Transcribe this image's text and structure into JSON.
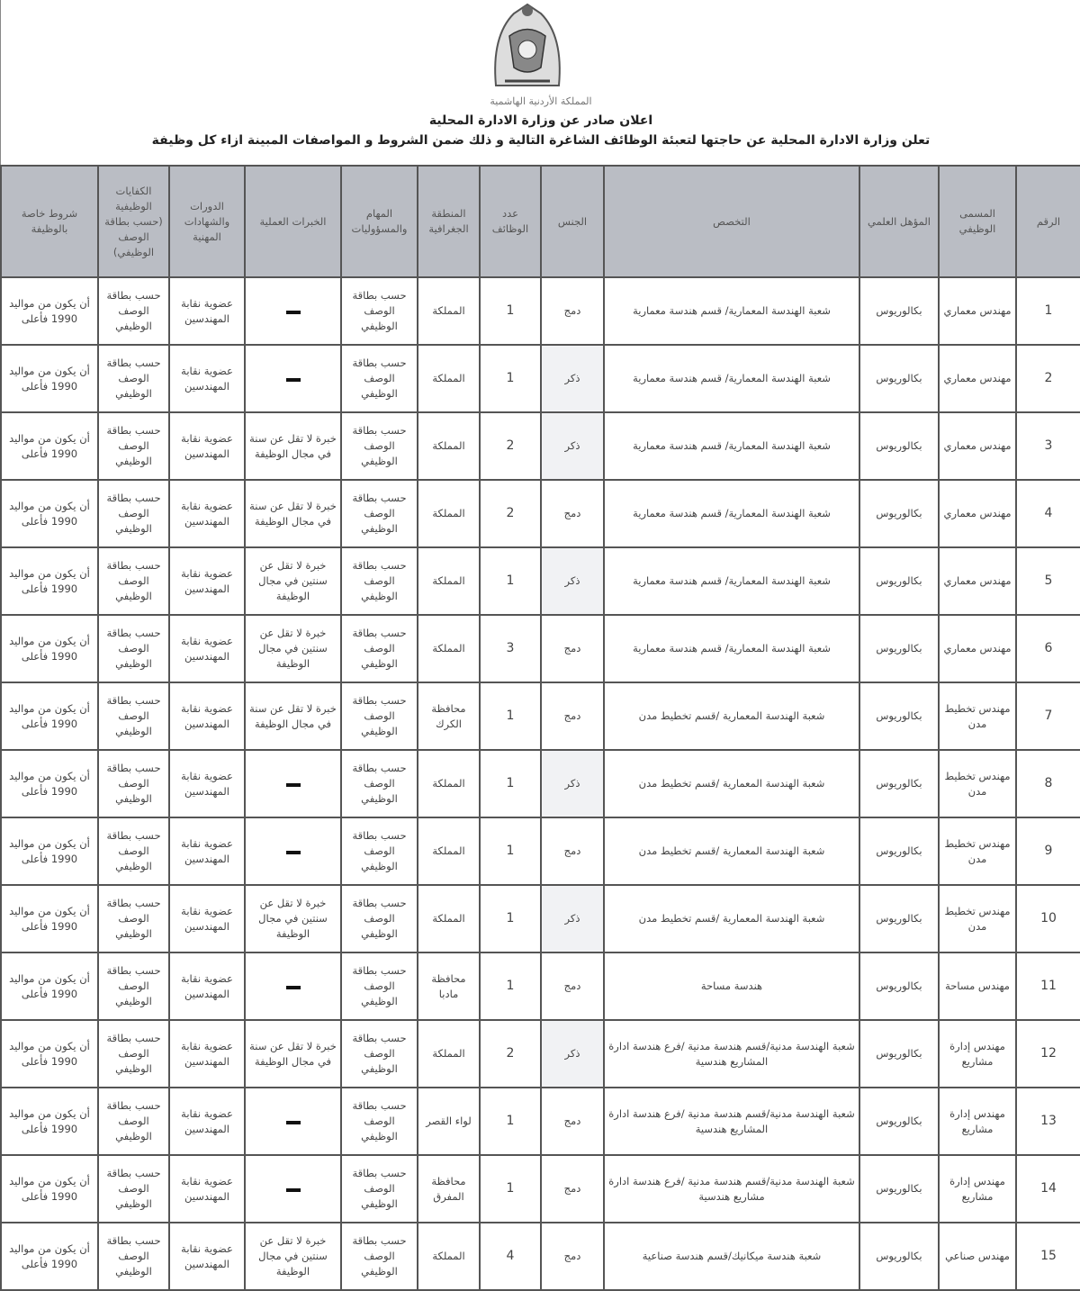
{
  "header": {
    "logo_text": "المملكة الأردنية الهاشمية",
    "title": "اعلان صادر عن وزارة الادارة المحلية",
    "subtitle": "تعلن وزارة الادارة المحلية  عن حاجتها لتعبئة الوظائف الشاغرة التالية و ذلك ضمن الشروط و المواصفات المبينة ازاء كل وظيفة"
  },
  "columns": [
    "الرقم",
    "المسمى الوظيفي",
    "المؤهل العلمي",
    "التخصص",
    "الجنس",
    "عدد الوظائف",
    "المنطقة الجغرافية",
    "المهام والمسؤوليات",
    "الخبرات العملية",
    "الدورات والشهادات المهنية",
    "الكفايات الوظيفية (حسب بطاقة الوصف الوظيفي)",
    "شروط خاصة بالوظيفة"
  ],
  "rows": [
    {
      "no": "1",
      "title": "مهندس معماري",
      "degree": "بكالوريوس",
      "major": "شعبة الهندسة المعمارية/ قسم هندسة معمارية",
      "gender": "دمج",
      "count": "1",
      "region": "المملكة",
      "duties": "حسب بطاقة الوصف الوظيفي",
      "experience": "-",
      "courses": "عضوية نقابة المهندسين",
      "competencies": "حسب بطاقة الوصف الوظيفي",
      "conditions": "أن يكون من مواليد 1990 فأعلى"
    },
    {
      "no": "2",
      "title": "مهندس معماري",
      "degree": "بكالوريوس",
      "major": "شعبة الهندسة المعمارية/ قسم هندسة معمارية",
      "gender": "ذكر",
      "count": "1",
      "region": "المملكة",
      "duties": "حسب بطاقة الوصف الوظيفي",
      "experience": "-",
      "courses": "عضوية نقابة المهندسين",
      "competencies": "حسب بطاقة الوصف الوظيفي",
      "conditions": "أن يكون من مواليد 1990 فأعلى"
    },
    {
      "no": "3",
      "title": "مهندس معماري",
      "degree": "بكالوريوس",
      "major": "شعبة الهندسة المعمارية/ قسم هندسة معمارية",
      "gender": "ذكر",
      "count": "2",
      "region": "المملكة",
      "duties": "حسب بطاقة الوصف الوظيفي",
      "experience": "خبرة لا تقل عن سنة في مجال الوظيفة",
      "courses": "عضوية نقابة المهندسين",
      "competencies": "حسب بطاقة الوصف الوظيفي",
      "conditions": "أن يكون من مواليد 1990 فأعلى"
    },
    {
      "no": "4",
      "title": "مهندس معماري",
      "degree": "بكالوريوس",
      "major": "شعبة الهندسة المعمارية/ قسم هندسة معمارية",
      "gender": "دمج",
      "count": "2",
      "region": "المملكة",
      "duties": "حسب بطاقة الوصف الوظيفي",
      "experience": "خبرة لا تقل عن سنة في مجال الوظيفة",
      "courses": "عضوية نقابة المهندسين",
      "competencies": "حسب بطاقة الوصف الوظيفي",
      "conditions": "أن يكون من مواليد 1990 فأعلى"
    },
    {
      "no": "5",
      "title": "مهندس معماري",
      "degree": "بكالوريوس",
      "major": "شعبة الهندسة المعمارية/ قسم هندسة معمارية",
      "gender": "ذكر",
      "count": "1",
      "region": "المملكة",
      "duties": "حسب بطاقة الوصف الوظيفي",
      "experience": "خبرة لا تقل عن سنتين في مجال الوظيفة",
      "courses": "عضوية نقابة المهندسين",
      "competencies": "حسب بطاقة الوصف الوظيفي",
      "conditions": "أن يكون من مواليد 1990 فأعلى"
    },
    {
      "no": "6",
      "title": "مهندس معماري",
      "degree": "بكالوريوس",
      "major": "شعبة الهندسة المعمارية/ قسم هندسة معمارية",
      "gender": "دمج",
      "count": "3",
      "region": "المملكة",
      "duties": "حسب بطاقة الوصف الوظيفي",
      "experience": "خبرة لا تقل عن سنتين في مجال الوظيفة",
      "courses": "عضوية نقابة المهندسين",
      "competencies": "حسب بطاقة الوصف الوظيفي",
      "conditions": "أن يكون من مواليد 1990 فأعلى"
    },
    {
      "no": "7",
      "title": "مهندس تخطيط مدن",
      "degree": "بكالوريوس",
      "major": "شعبة الهندسة المعمارية /قسم تخطيط مدن",
      "gender": "دمج",
      "count": "1",
      "region": "محافظة الكرك",
      "duties": "حسب بطاقة الوصف الوظيفي",
      "experience": "خبرة لا تقل عن سنة في مجال الوظيفة",
      "courses": "عضوية نقابة المهندسين",
      "competencies": "حسب بطاقة الوصف الوظيفي",
      "conditions": "أن يكون من مواليد 1990 فأعلى"
    },
    {
      "no": "8",
      "title": "مهندس تخطيط مدن",
      "degree": "بكالوريوس",
      "major": "شعبة الهندسة المعمارية /قسم تخطيط مدن",
      "gender": "ذكر",
      "count": "1",
      "region": "المملكة",
      "duties": "حسب بطاقة الوصف الوظيفي",
      "experience": "-",
      "courses": "عضوية نقابة المهندسين",
      "competencies": "حسب بطاقة الوصف الوظيفي",
      "conditions": "أن يكون من مواليد 1990 فأعلى"
    },
    {
      "no": "9",
      "title": "مهندس تخطيط مدن",
      "degree": "بكالوريوس",
      "major": "شعبة الهندسة المعمارية /قسم تخطيط مدن",
      "gender": "دمج",
      "count": "1",
      "region": "المملكة",
      "duties": "حسب بطاقة الوصف الوظيفي",
      "experience": "-",
      "courses": "عضوية نقابة المهندسين",
      "competencies": "حسب بطاقة الوصف الوظيفي",
      "conditions": "أن يكون من مواليد 1990 فأعلى"
    },
    {
      "no": "10",
      "title": "مهندس تخطيط مدن",
      "degree": "بكالوريوس",
      "major": "شعبة الهندسة المعمارية /قسم تخطيط مدن",
      "gender": "ذكر",
      "count": "1",
      "region": "المملكة",
      "duties": "حسب بطاقة الوصف الوظيفي",
      "experience": "خبرة لا تقل عن سنتين في مجال الوظيفة",
      "courses": "عضوية نقابة المهندسين",
      "competencies": "حسب بطاقة الوصف الوظيفي",
      "conditions": "أن يكون من مواليد 1990 فأعلى"
    },
    {
      "no": "11",
      "title": "مهندس مساحة",
      "degree": "بكالوريوس",
      "major": "هندسة مساحة",
      "gender": "دمج",
      "count": "1",
      "region": "محافظة مادبا",
      "duties": "حسب بطاقة الوصف الوظيفي",
      "experience": "-",
      "courses": "عضوية نقابة المهندسين",
      "competencies": "حسب بطاقة الوصف الوظيفي",
      "conditions": "أن يكون من مواليد 1990 فأعلى"
    },
    {
      "no": "12",
      "title": "مهندس إدارة مشاريع",
      "degree": "بكالوريوس",
      "major": "شعبة الهندسة مدنية/قسم هندسة مدنية /فرع هندسة ادارة المشاريع هندسية",
      "gender": "ذكر",
      "count": "2",
      "region": "المملكة",
      "duties": "حسب بطاقة الوصف الوظيفي",
      "experience": "خبرة لا تقل عن سنة في مجال الوظيفة",
      "courses": "عضوية نقابة المهندسين",
      "competencies": "حسب بطاقة الوصف الوظيفي",
      "conditions": "أن يكون من مواليد 1990 فأعلى"
    },
    {
      "no": "13",
      "title": "مهندس إدارة مشاريع",
      "degree": "بكالوريوس",
      "major": "شعبة الهندسة مدنية/قسم هندسة مدنية /فرع هندسة ادارة المشاريع هندسية",
      "gender": "دمج",
      "count": "1",
      "region": "لواء القصر",
      "duties": "حسب بطاقة الوصف الوظيفي",
      "experience": "-",
      "courses": "عضوية نقابة المهندسين",
      "competencies": "حسب بطاقة الوصف الوظيفي",
      "conditions": "أن يكون من مواليد 1990 فأعلى"
    },
    {
      "no": "14",
      "title": "مهندس إدارة مشاريع",
      "degree": "بكالوريوس",
      "major": "شعبة الهندسة مدنية/قسم هندسة مدنية /فرع هندسة ادارة مشاريع هندسية",
      "gender": "دمج",
      "count": "1",
      "region": "محافظة المفرق",
      "duties": "حسب بطاقة الوصف الوظيفي",
      "experience": "-",
      "courses": "عضوية نقابة المهندسين",
      "competencies": "حسب بطاقة الوصف الوظيفي",
      "conditions": "أن يكون من مواليد 1990 فأعلى"
    },
    {
      "no": "15",
      "title": "مهندس صناعي",
      "degree": "بكالوريوس",
      "major": "شعبة هندسة ميكانيك/قسم هندسة صناعية",
      "gender": "دمج",
      "count": "4",
      "region": "المملكة",
      "duties": "حسب بطاقة الوصف الوظيفي",
      "experience": "خبرة لا تقل عن سنتين في مجال الوظيفة",
      "courses": "عضوية نقابة المهندسين",
      "competencies": "حسب بطاقة الوصف الوظيفي",
      "conditions": "أن يكون من مواليد 1990 فأعلى"
    }
  ]
}
